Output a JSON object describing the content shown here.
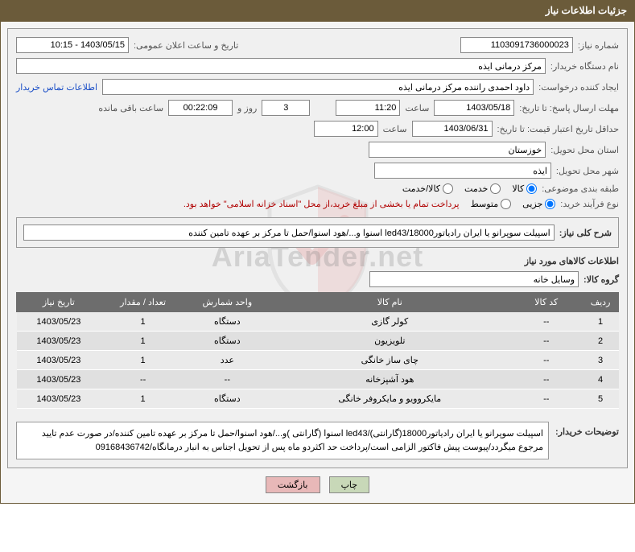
{
  "header_title": "جزئیات اطلاعات نیاز",
  "labels": {
    "need_no": "شماره نیاز:",
    "announce_dt": "تاریخ و ساعت اعلان عمومی:",
    "buyer_org": "نام دستگاه خریدار:",
    "requester": "ایجاد کننده درخواست:",
    "contact_link": "اطلاعات تماس خریدار",
    "deadline": "مهلت ارسال پاسخ: تا تاریخ:",
    "time_label": "ساعت",
    "days_and": "روز و",
    "remain": "ساعت باقی مانده",
    "validity": "حداقل تاریخ اعتبار قیمت: تا تاریخ:",
    "deliv_prov": "استان محل تحویل:",
    "deliv_city": "شهر محل تحویل:",
    "topic_class": "طبقه بندی موضوعی:",
    "buy_process": "نوع فرآیند خرید:",
    "general_desc": "شرح کلی نیاز:",
    "goods_info": "اطلاعات کالاهای مورد نیاز",
    "goods_group": "گروه کالا:",
    "buyer_notes": "توضیحات خریدار:"
  },
  "values": {
    "need_no": "1103091736000023",
    "announce_dt": "1403/05/15 - 10:15",
    "buyer_org": "مرکز درمانی ایذه",
    "requester": "داود احمدی راننده مرکز درمانی ایذه",
    "deadline_date": "1403/05/18",
    "deadline_time": "11:20",
    "days_left": "3",
    "time_left": "00:22:09",
    "validity_date": "1403/06/31",
    "validity_time": "12:00",
    "province": "خوزستان",
    "city": "ایذه",
    "process_note": "پرداخت تمام یا بخشی از مبلغ خرید،از محل \"اسناد خزانه اسلامی\" خواهد بود.",
    "general_desc": "اسپیلت سوپرانو یا ایران رادیاتورled43/18000 اسنوا و.../هود اسنوا/حمل تا مرکز بر عهده تامین کننده",
    "goods_group": "وسایل خانه",
    "buyer_notes": "اسپیلت سوپرانو یا ایران رادیاتور18000(گارانتی)/led43 اسنوا (گارانتی )و.../هود اسنوا/حمل تا مرکز بر عهده تامین کننده/در صورت عدم تایید مرجوع میگردد/پیوست پیش فاکتور الزامی است/پرداخت حد اکثردو ماه پس از تحویل اجناس به انبار درمانگاه/09168436742"
  },
  "radios": {
    "topic": [
      {
        "label": "کالا",
        "checked": true
      },
      {
        "label": "خدمت",
        "checked": false
      },
      {
        "label": "کالا/خدمت",
        "checked": false
      }
    ],
    "process": [
      {
        "label": "جزیی",
        "checked": true
      },
      {
        "label": "متوسط",
        "checked": false
      }
    ]
  },
  "table": {
    "headers": [
      "ردیف",
      "کد کالا",
      "نام کالا",
      "واحد شمارش",
      "تعداد / مقدار",
      "تاریخ نیاز"
    ],
    "col_widths": [
      "6%",
      "12%",
      "40%",
      "14%",
      "14%",
      "14%"
    ],
    "rows": [
      [
        "1",
        "--",
        "کولر گازی",
        "دستگاه",
        "1",
        "1403/05/23"
      ],
      [
        "2",
        "--",
        "تلویزیون",
        "دستگاه",
        "1",
        "1403/05/23"
      ],
      [
        "3",
        "--",
        "چای ساز خانگی",
        "عدد",
        "1",
        "1403/05/23"
      ],
      [
        "4",
        "--",
        "هود آشپزخانه",
        "--",
        "--",
        "1403/05/23"
      ],
      [
        "5",
        "--",
        "مایکروویو و مایکروفر خانگی",
        "دستگاه",
        "1",
        "1403/05/23"
      ]
    ]
  },
  "buttons": {
    "print": "چاپ",
    "back": "بازگشت"
  },
  "colors": {
    "header_bg": "#6b5b3a",
    "header_fg": "#ffffff",
    "panel_bg": "#f0f0f0",
    "th_bg": "#6d6d6d",
    "th_fg": "#ffffff",
    "td_bg": "#eaeaea",
    "link": "#1a4ec7",
    "note_red": "#b00000",
    "btn_print_bg": "#c8d8b8",
    "btn_back_bg": "#e8b8b8"
  }
}
